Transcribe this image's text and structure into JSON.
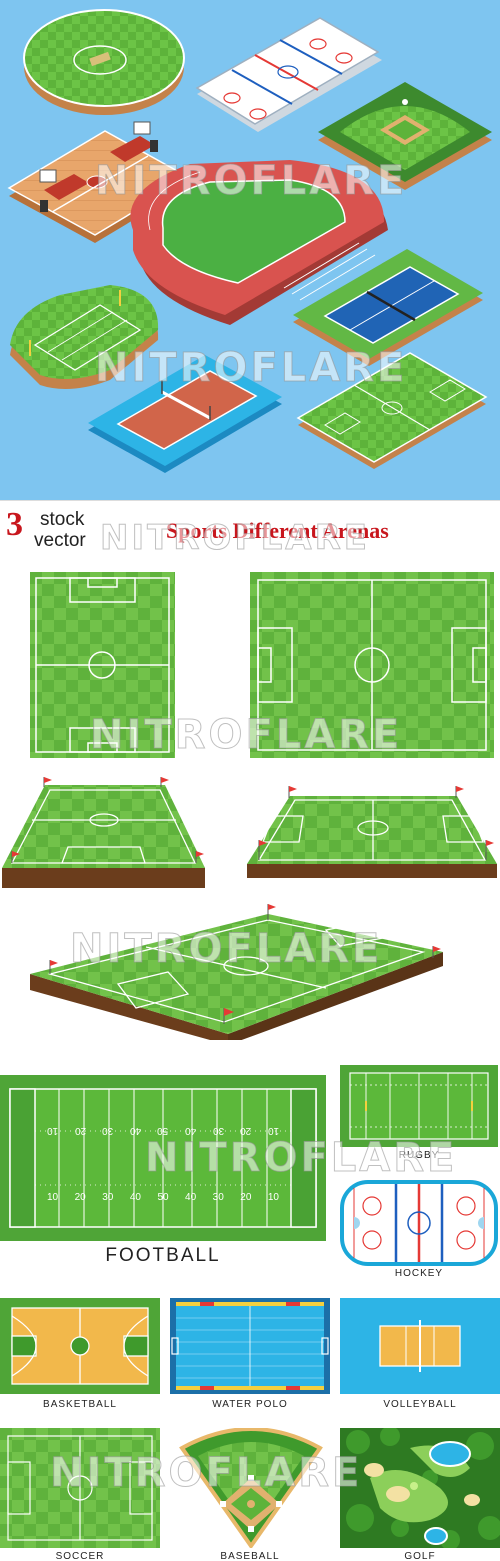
{
  "banner": {
    "number": "3",
    "stock": "stock",
    "vector": "vector",
    "title": "Sports Different Arenas"
  },
  "watermark": "NITROFLARE",
  "labels": {
    "rugby": "RUGBY",
    "football": "FOOTBALL",
    "hockey": "HOCKEY",
    "basketball": "BASKETBALL",
    "water_polo": "WATER POLO",
    "volleyball": "VOLLEYBALL",
    "soccer": "SOCCER",
    "baseball": "BASEBALL",
    "golf": "GOLF"
  },
  "football_yards_top": [
    "10",
    "20",
    "30",
    "40",
    "50",
    "40",
    "30",
    "20",
    "10"
  ],
  "football_yards_bottom": [
    "10",
    "20",
    "30",
    "40",
    "50",
    "40",
    "30",
    "20",
    "10"
  ],
  "colors": {
    "sky": "#7ec5f0",
    "grass": "#5cb83a",
    "grass_dark": "#3f9a2c",
    "track": "#d9534f",
    "brand_red": "#c8161d",
    "ice": "#ffffff",
    "water": "#2db4e6",
    "court": "#e9a64a"
  }
}
